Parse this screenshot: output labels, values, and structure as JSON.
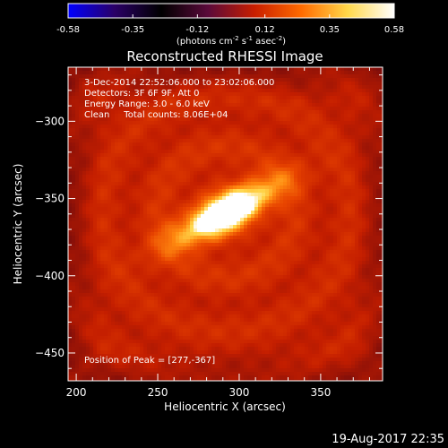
{
  "colorbar": {
    "ticks": [
      "-0.58",
      "-0.35",
      "-0.12",
      "0.12",
      "0.35",
      "0.58"
    ],
    "tick_values": [
      -0.58,
      -0.35,
      -0.12,
      0.12,
      0.35,
      0.58
    ],
    "units_prefix": "(photons cm",
    "units_exp1": "-2",
    "units_mid": " s",
    "units_exp2": "-1",
    "units_mid2": " asec",
    "units_exp3": "-2",
    "units_suffix": ")",
    "range": [
      -0.58,
      0.58
    ],
    "colors": [
      "#0000ff",
      "#2a0066",
      "#000000",
      "#5a0a3a",
      "#c81e00",
      "#ff6a00",
      "#ffd84a",
      "#ffffff"
    ]
  },
  "chart_data": {
    "type": "heatmap",
    "title": "Reconstructed RHESSI Image",
    "xlabel": "Heliocentric X (arcsec)",
    "ylabel": "Heliocentric Y (arcsec)",
    "xlim": [
      195,
      388
    ],
    "ylim": [
      -468,
      -265
    ],
    "xticks": [
      200,
      250,
      300,
      350
    ],
    "yticks": [
      -300,
      -350,
      -400,
      -450
    ],
    "xtick_labels": [
      "200",
      "250",
      "300",
      "350"
    ],
    "ytick_labels": [
      "−300",
      "−350",
      "−400",
      "−450"
    ],
    "peak_position": [
      277,
      -367
    ],
    "source": {
      "center": [
        292,
        -359
      ],
      "angle_deg": 30,
      "semi_major": 28,
      "semi_minor": 8.5,
      "peak_value": 0.58
    },
    "annotations": {
      "time_range": "3-Dec-2014 22:52:06.000 to 23:02:06.000",
      "detectors": "Detectors: 3F 6F 9F, Att 0",
      "energy": "Energy Range: 3.0 - 6.0 keV",
      "clean": "Clean",
      "total_counts": "Total counts: 8.06E+04",
      "peak_label": "Position of Peak = [277,-367]"
    },
    "grid": false
  },
  "footer": {
    "date": "19-Aug-2017 22:35"
  }
}
